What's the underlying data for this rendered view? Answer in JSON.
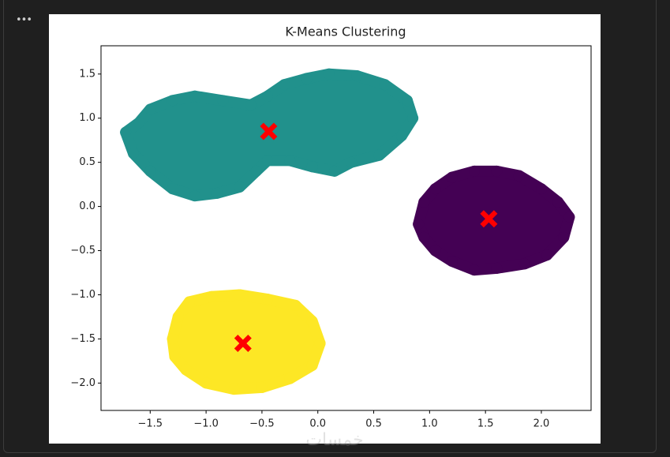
{
  "toolbar": {
    "menu": "•••"
  },
  "watermark": "خمسات",
  "chart_data": {
    "type": "scatter",
    "title": "K-Means Clustering",
    "xlim": [
      -1.94,
      2.445
    ],
    "ylim": [
      -2.31,
      1.82
    ],
    "xticks": [
      {
        "value": -1.5,
        "label": "−1.5"
      },
      {
        "value": -1.0,
        "label": "−1.0"
      },
      {
        "value": -0.5,
        "label": "−0.5"
      },
      {
        "value": 0.0,
        "label": "0.0"
      },
      {
        "value": 0.5,
        "label": "0.5"
      },
      {
        "value": 1.0,
        "label": "1.0"
      },
      {
        "value": 1.5,
        "label": "1.5"
      },
      {
        "value": 2.0,
        "label": "2.0"
      }
    ],
    "yticks": [
      {
        "value": -2.0,
        "label": "−2.0"
      },
      {
        "value": -1.5,
        "label": "−1.5"
      },
      {
        "value": -1.0,
        "label": "−1.0"
      },
      {
        "value": -0.5,
        "label": "−0.5"
      },
      {
        "value": 0.0,
        "label": "0.0"
      },
      {
        "value": 0.5,
        "label": "0.5"
      },
      {
        "value": 1.0,
        "label": "1.0"
      },
      {
        "value": 1.5,
        "label": "1.5"
      }
    ],
    "series": [
      {
        "color": "#21918c",
        "marker": "o",
        "x": [
          -1.72,
          -1.6,
          -1.5,
          -1.3,
          -1.1,
          -0.85,
          -0.6,
          -0.45,
          -0.3,
          -0.1,
          0.1,
          0.35,
          0.6,
          0.8,
          0.85,
          0.75,
          0.55,
          0.3,
          0.15,
          -0.05,
          -0.25,
          -0.45,
          -0.55,
          -0.7,
          -0.9,
          -1.1,
          -1.3,
          -1.5,
          -1.65
        ],
        "y": [
          0.84,
          0.95,
          1.1,
          1.2,
          1.25,
          1.2,
          1.15,
          1.25,
          1.38,
          1.45,
          1.5,
          1.48,
          1.38,
          1.2,
          1.0,
          0.8,
          0.58,
          0.5,
          0.4,
          0.45,
          0.52,
          0.52,
          0.4,
          0.22,
          0.15,
          0.12,
          0.2,
          0.4,
          0.6
        ]
      },
      {
        "color": "#440154",
        "marker": "o",
        "x": [
          0.9,
          0.95,
          1.05,
          1.2,
          1.4,
          1.6,
          1.8,
          2.0,
          2.15,
          2.25,
          2.2,
          2.05,
          1.85,
          1.6,
          1.4,
          1.2,
          1.05,
          0.95
        ],
        "y": [
          -0.2,
          0.05,
          0.2,
          0.33,
          0.4,
          0.4,
          0.35,
          0.2,
          0.05,
          -0.12,
          -0.35,
          -0.55,
          -0.65,
          -0.7,
          -0.72,
          -0.62,
          -0.5,
          -0.35
        ]
      },
      {
        "color": "#fde725",
        "marker": "o",
        "x": [
          -1.3,
          -1.25,
          -1.15,
          -0.95,
          -0.7,
          -0.45,
          -0.2,
          -0.05,
          0.02,
          -0.05,
          -0.25,
          -0.5,
          -0.75,
          -1.0,
          -1.18,
          -1.28
        ],
        "y": [
          -1.5,
          -1.25,
          -1.08,
          -1.02,
          -1.0,
          -1.05,
          -1.12,
          -1.3,
          -1.55,
          -1.8,
          -1.95,
          -2.05,
          -2.07,
          -2.0,
          -1.85,
          -1.7
        ]
      },
      {
        "color": "#ff0000",
        "marker": "X",
        "x": [
          -0.44,
          1.53,
          -0.67
        ],
        "y": [
          0.85,
          -0.14,
          -1.55
        ]
      }
    ]
  }
}
